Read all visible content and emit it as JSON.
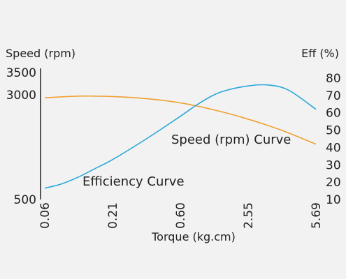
{
  "chart_data": {
    "type": "line",
    "xlabel": "Torque (kg.cm)",
    "ylabel_left": "Speed (rpm)",
    "ylabel_right": "Eff (%)",
    "x_ticks": [
      "0.06",
      "0.21",
      "0.60",
      "2.55",
      "5.69"
    ],
    "y_left_ticks": [
      "500",
      "3000",
      "3500"
    ],
    "y_left_tick_values": [
      500,
      3000,
      3500
    ],
    "y_right_ticks": [
      "10",
      "20",
      "30",
      "40",
      "50",
      "60",
      "70",
      "80"
    ],
    "y_right_tick_values": [
      10,
      20,
      30,
      40,
      50,
      60,
      70,
      80
    ],
    "y_left_range": [
      500,
      3500
    ],
    "y_right_range": [
      10,
      80
    ],
    "x_range_index": [
      0,
      4
    ],
    "grid": false,
    "colors": {
      "speed": "#f0a030",
      "efficiency": "#2aa7d8",
      "axis": "#222222"
    },
    "series": [
      {
        "key": "speed",
        "name": "Speed (rpm) Curve",
        "axis": "left",
        "x_index": [
          0,
          0.5,
          1,
          1.5,
          2,
          2.5,
          3,
          3.5,
          4
        ],
        "values": [
          2930,
          2970,
          2960,
          2910,
          2810,
          2640,
          2420,
          2150,
          1820
        ]
      },
      {
        "key": "efficiency",
        "name": "Efficiency Curve",
        "axis": "right",
        "x_index": [
          0,
          0.25,
          0.5,
          0.75,
          1,
          1.5,
          2,
          2.3,
          2.6,
          3,
          3.3,
          3.6,
          4
        ],
        "values": [
          16.5,
          19,
          23,
          28,
          33,
          45,
          58,
          66,
          72,
          75.5,
          76,
          73,
          62
        ]
      }
    ]
  }
}
